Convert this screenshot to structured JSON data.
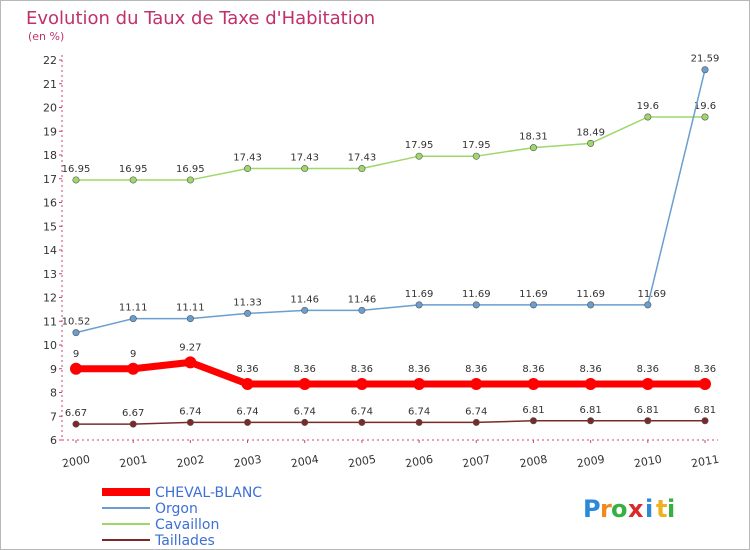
{
  "chart_data": {
    "type": "line",
    "title": "Evolution du Taux de Taxe d'Habitation",
    "subtitle": "(en %)",
    "categories": [
      "2000",
      "2001",
      "2002",
      "2003",
      "2004",
      "2005",
      "2006",
      "2007",
      "2008",
      "2009",
      "2010",
      "2011"
    ],
    "ylim": [
      6,
      22
    ],
    "yticks": [
      6,
      7,
      8,
      9,
      10,
      11,
      12,
      13,
      14,
      15,
      16,
      17,
      18,
      19,
      20,
      21,
      22
    ],
    "grid": false,
    "legend_position": "bottom-left",
    "series": [
      {
        "name": "CHEVAL-BLANC",
        "color": "#ff0000",
        "values": [
          9,
          9,
          9.27,
          8.36,
          8.36,
          8.36,
          8.36,
          8.36,
          8.36,
          8.36,
          8.36,
          8.36
        ],
        "labels": [
          "9",
          "9",
          "9.27",
          "8.36",
          "8.36",
          "8.36",
          "8.36",
          "8.36",
          "8.36",
          "8.36",
          "8.36",
          "8.36"
        ]
      },
      {
        "name": "Orgon",
        "color": "#6a9ed0",
        "values": [
          10.52,
          11.11,
          11.11,
          11.33,
          11.46,
          11.46,
          11.69,
          11.69,
          11.69,
          11.69,
          11.69,
          21.59
        ],
        "labels": [
          "10.52",
          "11.11",
          "11.11",
          "11.33",
          "11.46",
          "11.46",
          "11.69",
          "11.69",
          "11.69",
          "11.69",
          "11.69",
          "21.59"
        ]
      },
      {
        "name": "Cavaillon",
        "color": "#9ed86a",
        "values": [
          16.95,
          16.95,
          16.95,
          17.43,
          17.43,
          17.43,
          17.95,
          17.95,
          18.31,
          18.49,
          19.6,
          19.6
        ],
        "labels": [
          "16.95",
          "16.95",
          "16.95",
          "17.43",
          "17.43",
          "17.43",
          "17.95",
          "17.95",
          "18.31",
          "18.49",
          "19.6",
          "19.6"
        ]
      },
      {
        "name": "Taillades",
        "color": "#7a2a2a",
        "values": [
          6.67,
          6.67,
          6.74,
          6.74,
          6.74,
          6.74,
          6.74,
          6.74,
          6.81,
          6.81,
          6.81,
          6.81
        ],
        "labels": [
          "6.67",
          "6.67",
          "6.74",
          "6.74",
          "6.74",
          "6.74",
          "6.74",
          "6.74",
          "6.81",
          "6.81",
          "6.81",
          "6.81"
        ]
      }
    ]
  },
  "logo": {
    "letters": [
      "P",
      "r",
      "o",
      "x",
      "i",
      "t",
      "i"
    ],
    "colors": [
      "#2a8ad8",
      "#f08a20",
      "#38b040",
      "#d82a2a",
      "#2a8ad8",
      "#f0b020",
      "#38b040"
    ]
  }
}
